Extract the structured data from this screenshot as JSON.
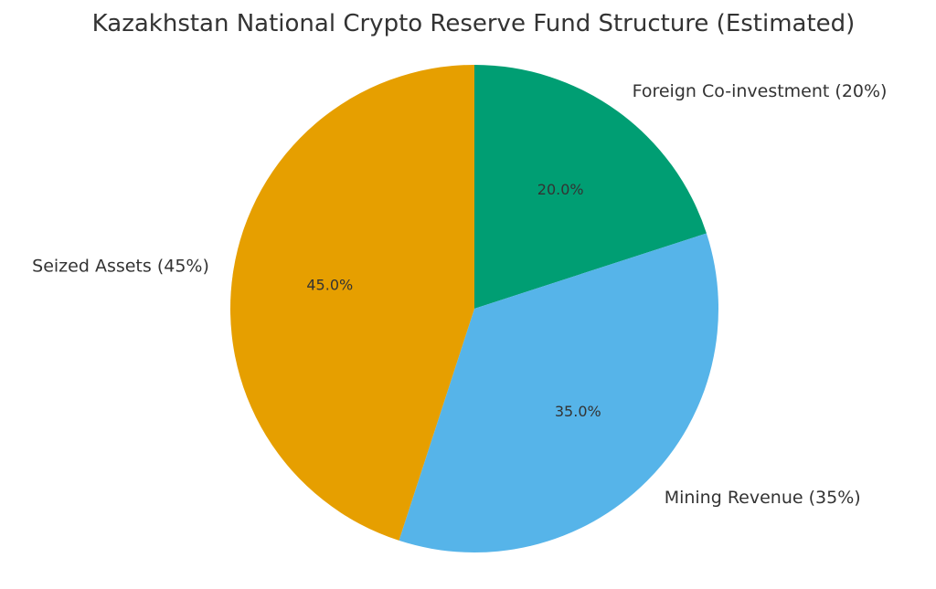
{
  "chart_data": {
    "type": "pie",
    "title": "Kazakhstan National Crypto Reserve Fund Structure (Estimated)",
    "start_angle_deg": 90,
    "direction": "clockwise",
    "slices": [
      {
        "label": "Foreign Co-investment (20%)",
        "value": 20,
        "pct_label": "20.0%",
        "color": "#009E73"
      },
      {
        "label": "Mining Revenue (35%)",
        "value": 35,
        "pct_label": "35.0%",
        "color": "#56B4E9"
      },
      {
        "label": "Seized Assets (45%)",
        "value": 45,
        "pct_label": "45.0%",
        "color": "#E69F00"
      }
    ]
  }
}
